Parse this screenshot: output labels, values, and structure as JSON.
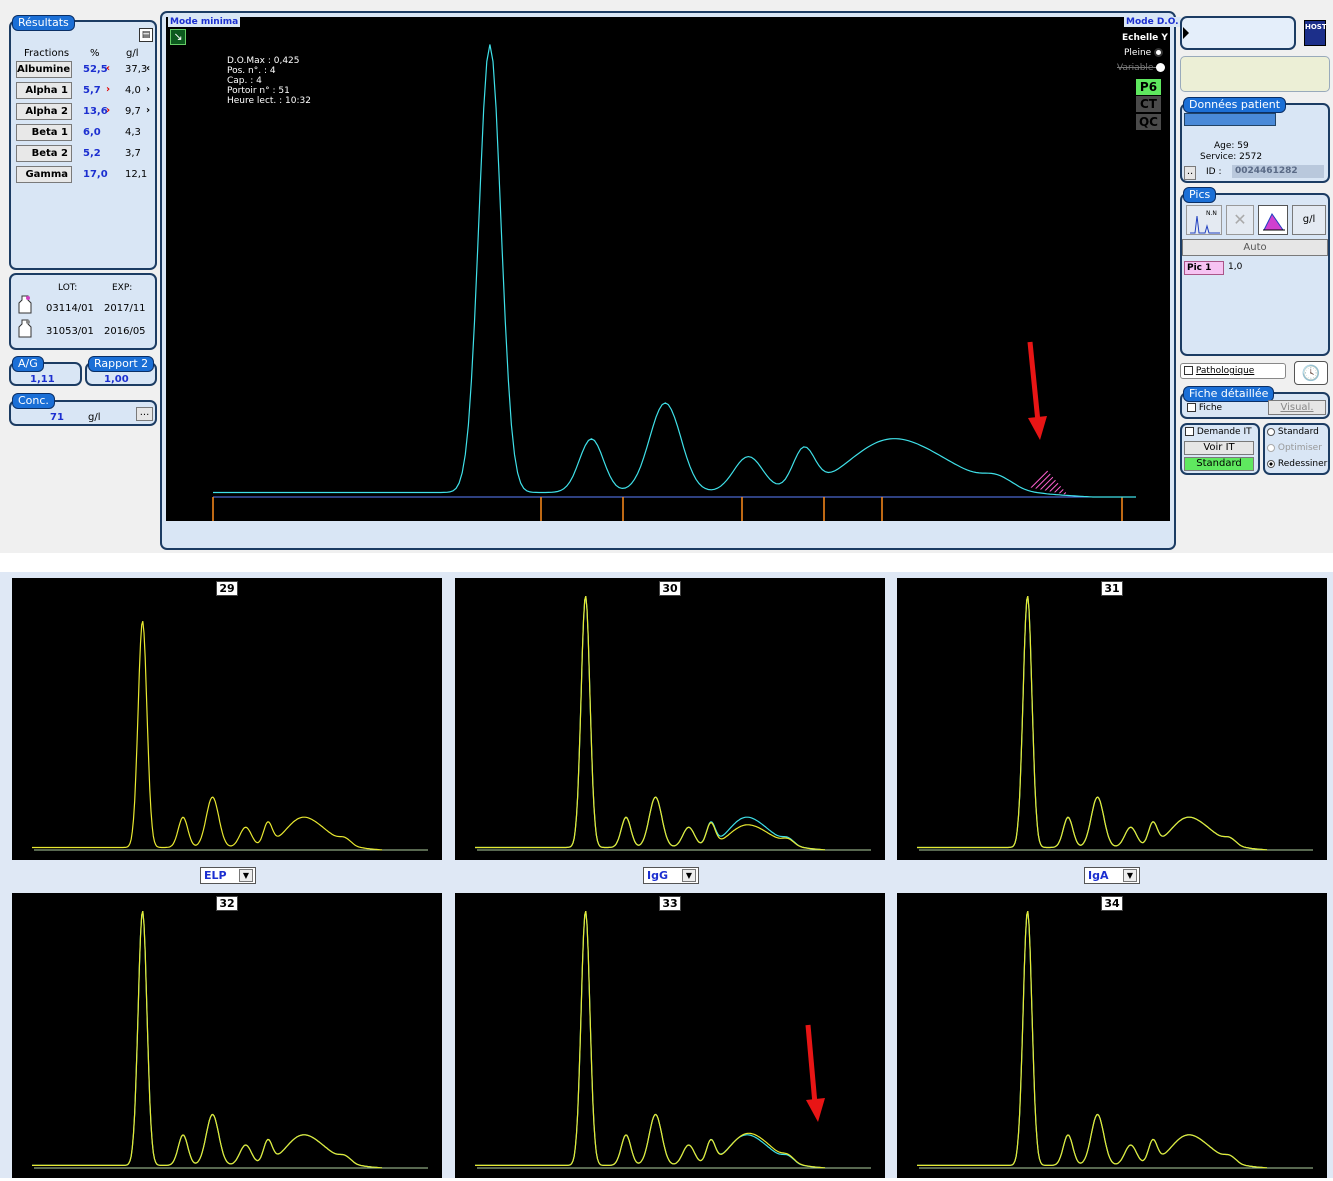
{
  "left": {
    "results_title": "Résultats",
    "col_fractions": "Fractions",
    "col_pct": "%",
    "col_gl": "g/l",
    "fractions": [
      {
        "name": "Albumine",
        "pct": "52,5",
        "flag": "‹",
        "gl": "37,3",
        "glflag": "‹"
      },
      {
        "name": "Alpha 1",
        "pct": "5,7",
        "flag": "›",
        "gl": "4,0",
        "glflag": "›"
      },
      {
        "name": "Alpha 2",
        "pct": "13,6",
        "flag": "›",
        "gl": "9,7",
        "glflag": "›"
      },
      {
        "name": "Beta 1",
        "pct": "6,0",
        "flag": "",
        "gl": "4,3",
        "glflag": ""
      },
      {
        "name": "Beta 2",
        "pct": "5,2",
        "flag": "",
        "gl": "3,7",
        "glflag": ""
      },
      {
        "name": "Gamma",
        "pct": "17,0",
        "flag": "",
        "gl": "12,1",
        "glflag": ""
      }
    ],
    "lot_label": "LOT:",
    "exp_label": "EXP:",
    "lots": [
      {
        "lot": "03114/01",
        "exp": "2017/11"
      },
      {
        "lot": "31053/01",
        "exp": "2016/05"
      }
    ],
    "ag_title": "A/G",
    "ag_value": "1,11",
    "rapport_title": "Rapport 2",
    "rapport_value": "1,00",
    "conc_title": "Conc.",
    "conc_value": "71",
    "conc_unit": "g/l",
    "conc_button": "..."
  },
  "main": {
    "mode_left": "Mode minima",
    "mode_right": "Mode D.O.",
    "echelle_title": "Echelle Y",
    "pleine": "Pleine",
    "variable": "Variable",
    "badges": [
      "P6",
      "CT",
      "QC"
    ],
    "info": [
      "D.O.Max : 0,425",
      "Pos. n°. : 4",
      "Cap. : 4",
      "Portoir n° : 51",
      "Heure lect. : 10:32"
    ]
  },
  "right": {
    "host_label": "HOST",
    "patient_title": "Données patient",
    "age": "Age: 59",
    "service": "Service: 2572",
    "id_label": "ID :",
    "id_value": "0024461282",
    "more_button": "..",
    "pics_title": "Pics",
    "gl_button": "g/l",
    "auto_button": "Auto",
    "pic_label": "Pic 1",
    "pic_value": "1,0",
    "pathologique": "Pathologique",
    "fiche_title": "Fiche détaillée",
    "fiche_check": "Fiche",
    "visual_button": "Visual.",
    "demande_it": "Demande IT",
    "voir_it": "Voir IT",
    "standard_btn": "Standard",
    "radio_standard": "Standard",
    "radio_optimiser": "Optimiser",
    "radio_redessiner": "Redessiner"
  },
  "thumbnails": [
    {
      "num": "29"
    },
    {
      "num": "30"
    },
    {
      "num": "31"
    },
    {
      "num": "32"
    },
    {
      "num": "33"
    },
    {
      "num": "34"
    }
  ],
  "selectors": [
    "ELP",
    "IgG",
    "IgA"
  ],
  "colors": {
    "trace_cyan": "#3fe0e8",
    "trace_yellow": "#e8e830",
    "marker_orange": "#ff8c1a",
    "arrow_red": "#e81515",
    "tag_blue": "#1b6fd6",
    "panel_bg": "#d9e6f5"
  }
}
